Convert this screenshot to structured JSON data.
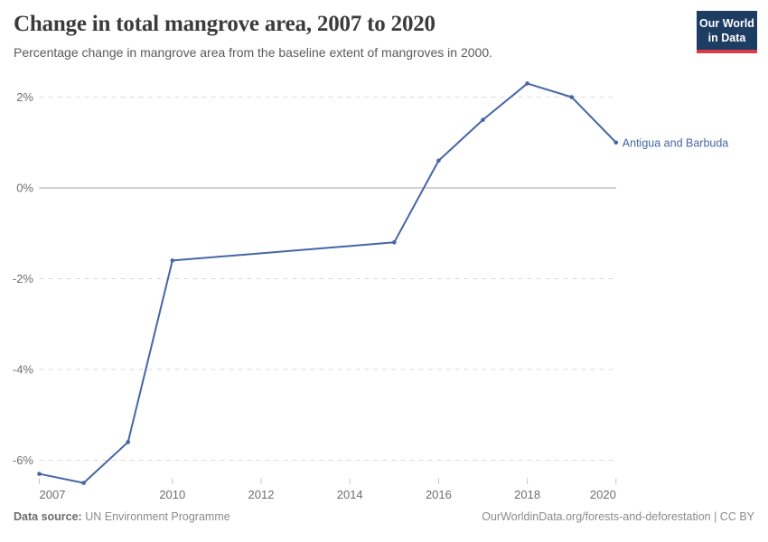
{
  "header": {
    "title": "Change in total mangrove area, 2007 to 2020",
    "subtitle": "Percentage change in mangrove area from the baseline extent of mangroves in 2000."
  },
  "logo": {
    "line1": "Our World",
    "line2": "in Data"
  },
  "chart_data": {
    "type": "line",
    "title": "Change in total mangrove area, 2007 to 2020",
    "xlabel": "",
    "ylabel": "",
    "xlim": [
      2007,
      2020
    ],
    "ylim": [
      -6.8,
      2.5
    ],
    "grid": "horizontal-dashed",
    "legend_position": "end-of-line-label",
    "x_ticks": [
      {
        "v": 2007,
        "label": "2007"
      },
      {
        "v": 2010,
        "label": "2010"
      },
      {
        "v": 2012,
        "label": "2012"
      },
      {
        "v": 2014,
        "label": "2014"
      },
      {
        "v": 2016,
        "label": "2016"
      },
      {
        "v": 2018,
        "label": "2018"
      },
      {
        "v": 2020,
        "label": "2020"
      }
    ],
    "y_ticks": [
      {
        "v": 2,
        "label": "2%"
      },
      {
        "v": 0,
        "label": "0%"
      },
      {
        "v": -2,
        "label": "-2%"
      },
      {
        "v": -4,
        "label": "-4%"
      },
      {
        "v": -6,
        "label": "-6%"
      }
    ],
    "series": [
      {
        "name": "Antigua and Barbuda",
        "color": "#4666a5",
        "x": [
          2007,
          2008,
          2009,
          2010,
          2015,
          2016,
          2017,
          2018,
          2019,
          2020
        ],
        "values": [
          -6.3,
          -6.5,
          -5.6,
          -1.6,
          -1.2,
          0.6,
          1.5,
          2.3,
          2.0,
          1.0
        ]
      }
    ]
  },
  "footer": {
    "source_label": "Data source:",
    "source_value": "UN Environment Programme",
    "link": "OurWorldinData.org/forests-and-deforestation | CC BY"
  }
}
